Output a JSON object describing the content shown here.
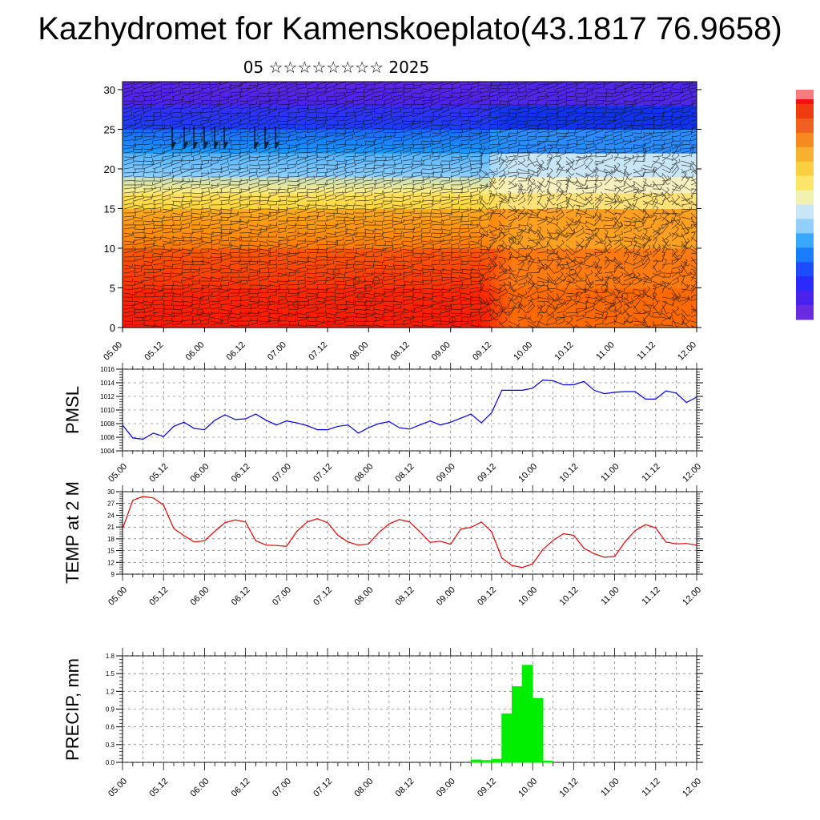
{
  "header": {
    "title": "Kazhydromet for Kamenskoeplato(43.1817 76.9658)",
    "subtitle": "05 ☆☆☆☆☆☆☆☆ 2025"
  },
  "colors": {
    "pmsl_line": "#0000ee",
    "temp_line": "#e60000",
    "precip_bar": "#00ee00",
    "grid": "#555555"
  },
  "chart_data": [
    {
      "type": "heatmap",
      "name": "vertical-profile",
      "title": "",
      "xlabel": "",
      "ylabel": "",
      "x_tick_labels": [
        "05.00",
        "05.12",
        "06.00",
        "06.12",
        "07.00",
        "07.12",
        "08.00",
        "08.12",
        "09.00",
        "09.12",
        "10.00",
        "10.12",
        "11.00",
        "11.12",
        "12.00"
      ],
      "x_range": [
        0,
        168
      ],
      "ylim": [
        0,
        31
      ],
      "y_ticks": [
        0,
        5,
        10,
        15,
        20,
        25,
        30
      ],
      "overlay": "wind barbs",
      "colorbar": "vertical, right side, red-orange-yellow-blue-purple",
      "temperature_bands": [
        {
          "level": 0,
          "color_left": "#ff1a00",
          "color_right": "#ff6a00"
        },
        {
          "level": 5,
          "color_left": "#ff3300",
          "color_right": "#ff7a10"
        },
        {
          "level": 10,
          "color_left": "#ff7a00",
          "color_right": "#ffa020"
        },
        {
          "level": 15,
          "color_left": "#ffd63a",
          "color_right": "#ffe27a"
        },
        {
          "level": 17,
          "color_left": "#ffee80",
          "color_right": "#f6f0c0"
        },
        {
          "level": 19,
          "color_left": "#8fd0ff",
          "color_right": "#c8e6f5"
        },
        {
          "level": 22,
          "color_left": "#1a9bff",
          "color_right": "#2a8cff"
        },
        {
          "level": 25,
          "color_left": "#1b3dff",
          "color_right": "#1133ee"
        },
        {
          "level": 28,
          "color_left": "#4a22ee",
          "color_right": "#4f27e8"
        },
        {
          "level": 31,
          "color_left": "#6a2ae0",
          "color_right": "#6a2ae0"
        }
      ]
    },
    {
      "type": "line",
      "name": "pmsl",
      "ylabel": "PMSL",
      "xlabel": "",
      "ylim": [
        1004,
        1016
      ],
      "y_ticks": [
        1004,
        1006,
        1008,
        1010,
        1012,
        1014,
        1016
      ],
      "x_tick_labels": [
        "05.00",
        "05.12",
        "06.00",
        "06.12",
        "07.00",
        "07.12",
        "08.00",
        "08.12",
        "09.00",
        "09.12",
        "10.00",
        "10.12",
        "11.00",
        "11.12",
        "12.00"
      ],
      "x": [
        0,
        3,
        6,
        9,
        12,
        15,
        18,
        21,
        24,
        27,
        30,
        33,
        36,
        39,
        42,
        45,
        48,
        51,
        54,
        57,
        60,
        63,
        66,
        69,
        72,
        75,
        78,
        81,
        84,
        87,
        90,
        93,
        96,
        99,
        102,
        105,
        108,
        111,
        114,
        117,
        120,
        123,
        126,
        129,
        132,
        135,
        138,
        141,
        144,
        147,
        150,
        153,
        156,
        159,
        162,
        165,
        168
      ],
      "values": [
        1007.8,
        1005.9,
        1005.7,
        1006.6,
        1006.1,
        1007.6,
        1008.2,
        1007.3,
        1007.1,
        1008.5,
        1009.3,
        1008.6,
        1008.7,
        1009.4,
        1008.5,
        1007.8,
        1008.4,
        1008.1,
        1007.7,
        1007.1,
        1007.1,
        1007.6,
        1007.8,
        1006.6,
        1007.4,
        1008.0,
        1008.3,
        1007.4,
        1007.2,
        1007.8,
        1008.4,
        1007.8,
        1008.2,
        1008.8,
        1009.4,
        1008.1,
        1009.6,
        1012.9,
        1012.9,
        1012.9,
        1013.2,
        1014.4,
        1014.3,
        1013.7,
        1013.7,
        1014.2,
        1012.9,
        1012.4,
        1012.6,
        1012.7,
        1012.7,
        1011.6,
        1011.6,
        1012.8,
        1012.5,
        1011.1,
        1011.9
      ]
    },
    {
      "type": "line",
      "name": "temp-2m",
      "ylabel": "TEMP at 2 M",
      "xlabel": "",
      "ylim": [
        9,
        30
      ],
      "y_ticks": [
        9,
        12,
        15,
        18,
        21,
        24,
        27,
        30
      ],
      "x_tick_labels": [
        "05.00",
        "05.12",
        "06.00",
        "06.12",
        "07.00",
        "07.12",
        "08.00",
        "08.12",
        "09.00",
        "09.12",
        "10.00",
        "10.12",
        "11.00",
        "11.12",
        "12.00"
      ],
      "x": [
        0,
        3,
        6,
        9,
        12,
        15,
        18,
        21,
        24,
        27,
        30,
        33,
        36,
        39,
        42,
        45,
        48,
        51,
        54,
        57,
        60,
        63,
        66,
        69,
        72,
        75,
        78,
        81,
        84,
        87,
        90,
        93,
        96,
        99,
        102,
        105,
        108,
        111,
        114,
        117,
        120,
        123,
        126,
        129,
        132,
        135,
        138,
        141,
        144,
        147,
        150,
        153,
        156,
        159,
        162,
        165,
        168
      ],
      "values": [
        20.5,
        27.8,
        28.8,
        28.4,
        26.6,
        20.6,
        18.8,
        17.2,
        17.5,
        19.9,
        22.1,
        22.8,
        22.3,
        17.5,
        16.4,
        16.3,
        16.1,
        19.9,
        22.3,
        23.1,
        22.1,
        18.9,
        17.2,
        16.4,
        16.7,
        19.6,
        21.8,
        22.9,
        22.3,
        19.8,
        17.1,
        17.4,
        16.6,
        20.5,
        20.9,
        22.3,
        19.8,
        13.1,
        11.2,
        10.7,
        11.6,
        15.3,
        17.6,
        19.3,
        18.9,
        15.6,
        14.2,
        13.3,
        13.5,
        17.2,
        20.1,
        21.6,
        20.8,
        17.2,
        16.7,
        16.8,
        16.4
      ]
    },
    {
      "type": "bar",
      "name": "precip",
      "ylabel": "PRECIP, mm",
      "xlabel": "",
      "ylim": [
        0,
        1.8
      ],
      "y_ticks": [
        "0.0",
        "0.3",
        "0.6",
        "0.9",
        "1.2",
        "1.5",
        "1.8"
      ],
      "x_tick_labels": [
        "05.00",
        "05.12",
        "06.00",
        "06.12",
        "07.00",
        "07.12",
        "08.00",
        "08.12",
        "09.00",
        "09.12",
        "10.00",
        "10.12",
        "11.00",
        "11.12",
        "12.00"
      ],
      "x": [
        102,
        105,
        108,
        111,
        114,
        117,
        120,
        123
      ],
      "values": [
        0.04,
        0.03,
        0.05,
        0.82,
        1.28,
        1.64,
        1.08,
        0.02
      ]
    }
  ]
}
